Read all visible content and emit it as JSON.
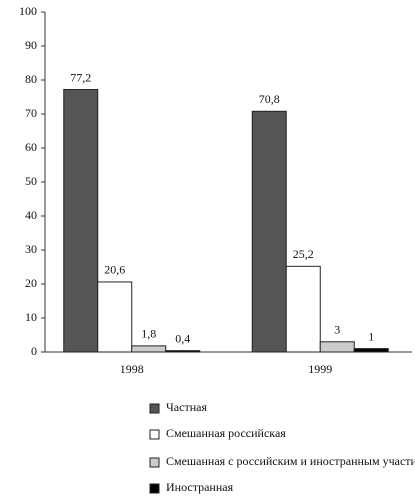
{
  "chart_data": {
    "type": "bar",
    "categories": [
      "1998",
      "1999"
    ],
    "series": [
      {
        "name": "Частная",
        "color": "#555555",
        "values": [
          77.2,
          70.8
        ],
        "value_labels": [
          "77,2",
          "70,8"
        ]
      },
      {
        "name": "Смешанная российская",
        "color": "#ffffff",
        "values": [
          20.6,
          25.2
        ],
        "value_labels": [
          "20,6",
          "25,2"
        ]
      },
      {
        "name": "Смешанная с российским и иностранным участием",
        "color": "#cccccc",
        "values": [
          1.8,
          3
        ],
        "value_labels": [
          "1,8",
          "3"
        ]
      },
      {
        "name": "Иностранная",
        "color": "#000000",
        "values": [
          0.4,
          1
        ],
        "value_labels": [
          "0,4",
          "1"
        ]
      }
    ],
    "ylim": [
      0,
      100
    ],
    "yticks": [
      0,
      10,
      20,
      30,
      40,
      50,
      60,
      70,
      80,
      90,
      100
    ],
    "grid": false
  }
}
